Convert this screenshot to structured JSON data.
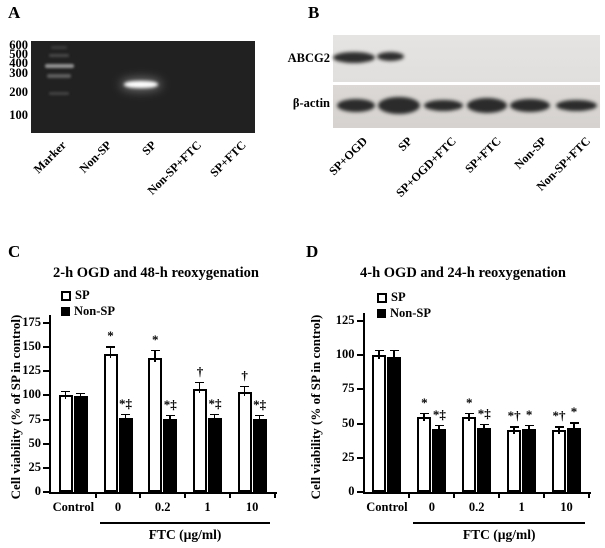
{
  "panels": {
    "a": {
      "letter": "A",
      "type": "gel-electrophoresis",
      "ladder_labels": [
        "600",
        "500",
        "400",
        "300",
        "200",
        "100"
      ],
      "marker_bands_bp": [
        600,
        500,
        400,
        300,
        200
      ],
      "lanes": [
        "Marker",
        "Non-SP",
        "SP",
        "Non-SP+FTC",
        "SP+FTC"
      ],
      "positive_band": {
        "lane": "SP",
        "approx_bp": 250
      }
    },
    "b": {
      "letter": "B",
      "type": "western-blot",
      "rows": [
        "ABCG2",
        "β-actin"
      ],
      "lanes": [
        "SP+OGD",
        "SP",
        "SP+OGD+FTC",
        "SP+FTC",
        "Non-SP",
        "Non-SP+FTC"
      ],
      "abcg2_band_lanes": [
        "SP+OGD",
        "SP"
      ],
      "actin_band_lanes": [
        "SP+OGD",
        "SP",
        "SP+OGD+FTC",
        "SP+FTC",
        "Non-SP",
        "Non-SP+FTC"
      ]
    }
  },
  "chart_data": [
    {
      "type": "bar",
      "panel_letter": "C",
      "title": "2-h OGD and 48-h reoxygenation",
      "ylabel": "Cell viability (% of SP in control)",
      "xlabel": "FTC (µg/ml)",
      "categories": [
        "Control",
        "0",
        "0.2",
        "1",
        "10"
      ],
      "ylim": [
        0,
        175
      ],
      "ytick_step": 25,
      "grid": false,
      "legend_position": "top-left",
      "series": [
        {
          "name": "SP",
          "fill": "#ffffff",
          "values": [
            100,
            143,
            139,
            107,
            104
          ],
          "errors": [
            5,
            8,
            8,
            7,
            6
          ],
          "annotations": [
            "",
            "*",
            "*",
            "†",
            "†"
          ]
        },
        {
          "name": "Non-SP",
          "fill": "#000000",
          "values": [
            99,
            77,
            76,
            77,
            76
          ],
          "errors": [
            4,
            4,
            4,
            4,
            4
          ],
          "annotations": [
            "",
            "*‡",
            "*‡",
            "*‡",
            "*‡"
          ]
        }
      ],
      "xlabel_span_categories": [
        "0",
        "10"
      ]
    },
    {
      "type": "bar",
      "panel_letter": "D",
      "title": "4-h OGD and 24-h reoxygenation",
      "ylabel": "Cell viability (% of SP in control)",
      "xlabel": "FTC (µg/ml)",
      "categories": [
        "Control",
        "0",
        "0.2",
        "1",
        "10"
      ],
      "ylim": [
        0,
        125
      ],
      "ytick_step": 25,
      "grid": false,
      "legend_position": "top-left",
      "series": [
        {
          "name": "SP",
          "fill": "#ffffff",
          "values": [
            100,
            55,
            55,
            45,
            45
          ],
          "errors": [
            4,
            3,
            3,
            3,
            3
          ],
          "annotations": [
            "",
            "*",
            "*",
            "*†",
            "*†"
          ]
        },
        {
          "name": "Non-SP",
          "fill": "#000000",
          "values": [
            99,
            46,
            47,
            46,
            47
          ],
          "errors": [
            5,
            3,
            3,
            3,
            4
          ],
          "annotations": [
            "",
            "*‡",
            "*‡",
            "*",
            "*"
          ]
        }
      ],
      "xlabel_span_categories": [
        "0",
        "10"
      ]
    }
  ]
}
